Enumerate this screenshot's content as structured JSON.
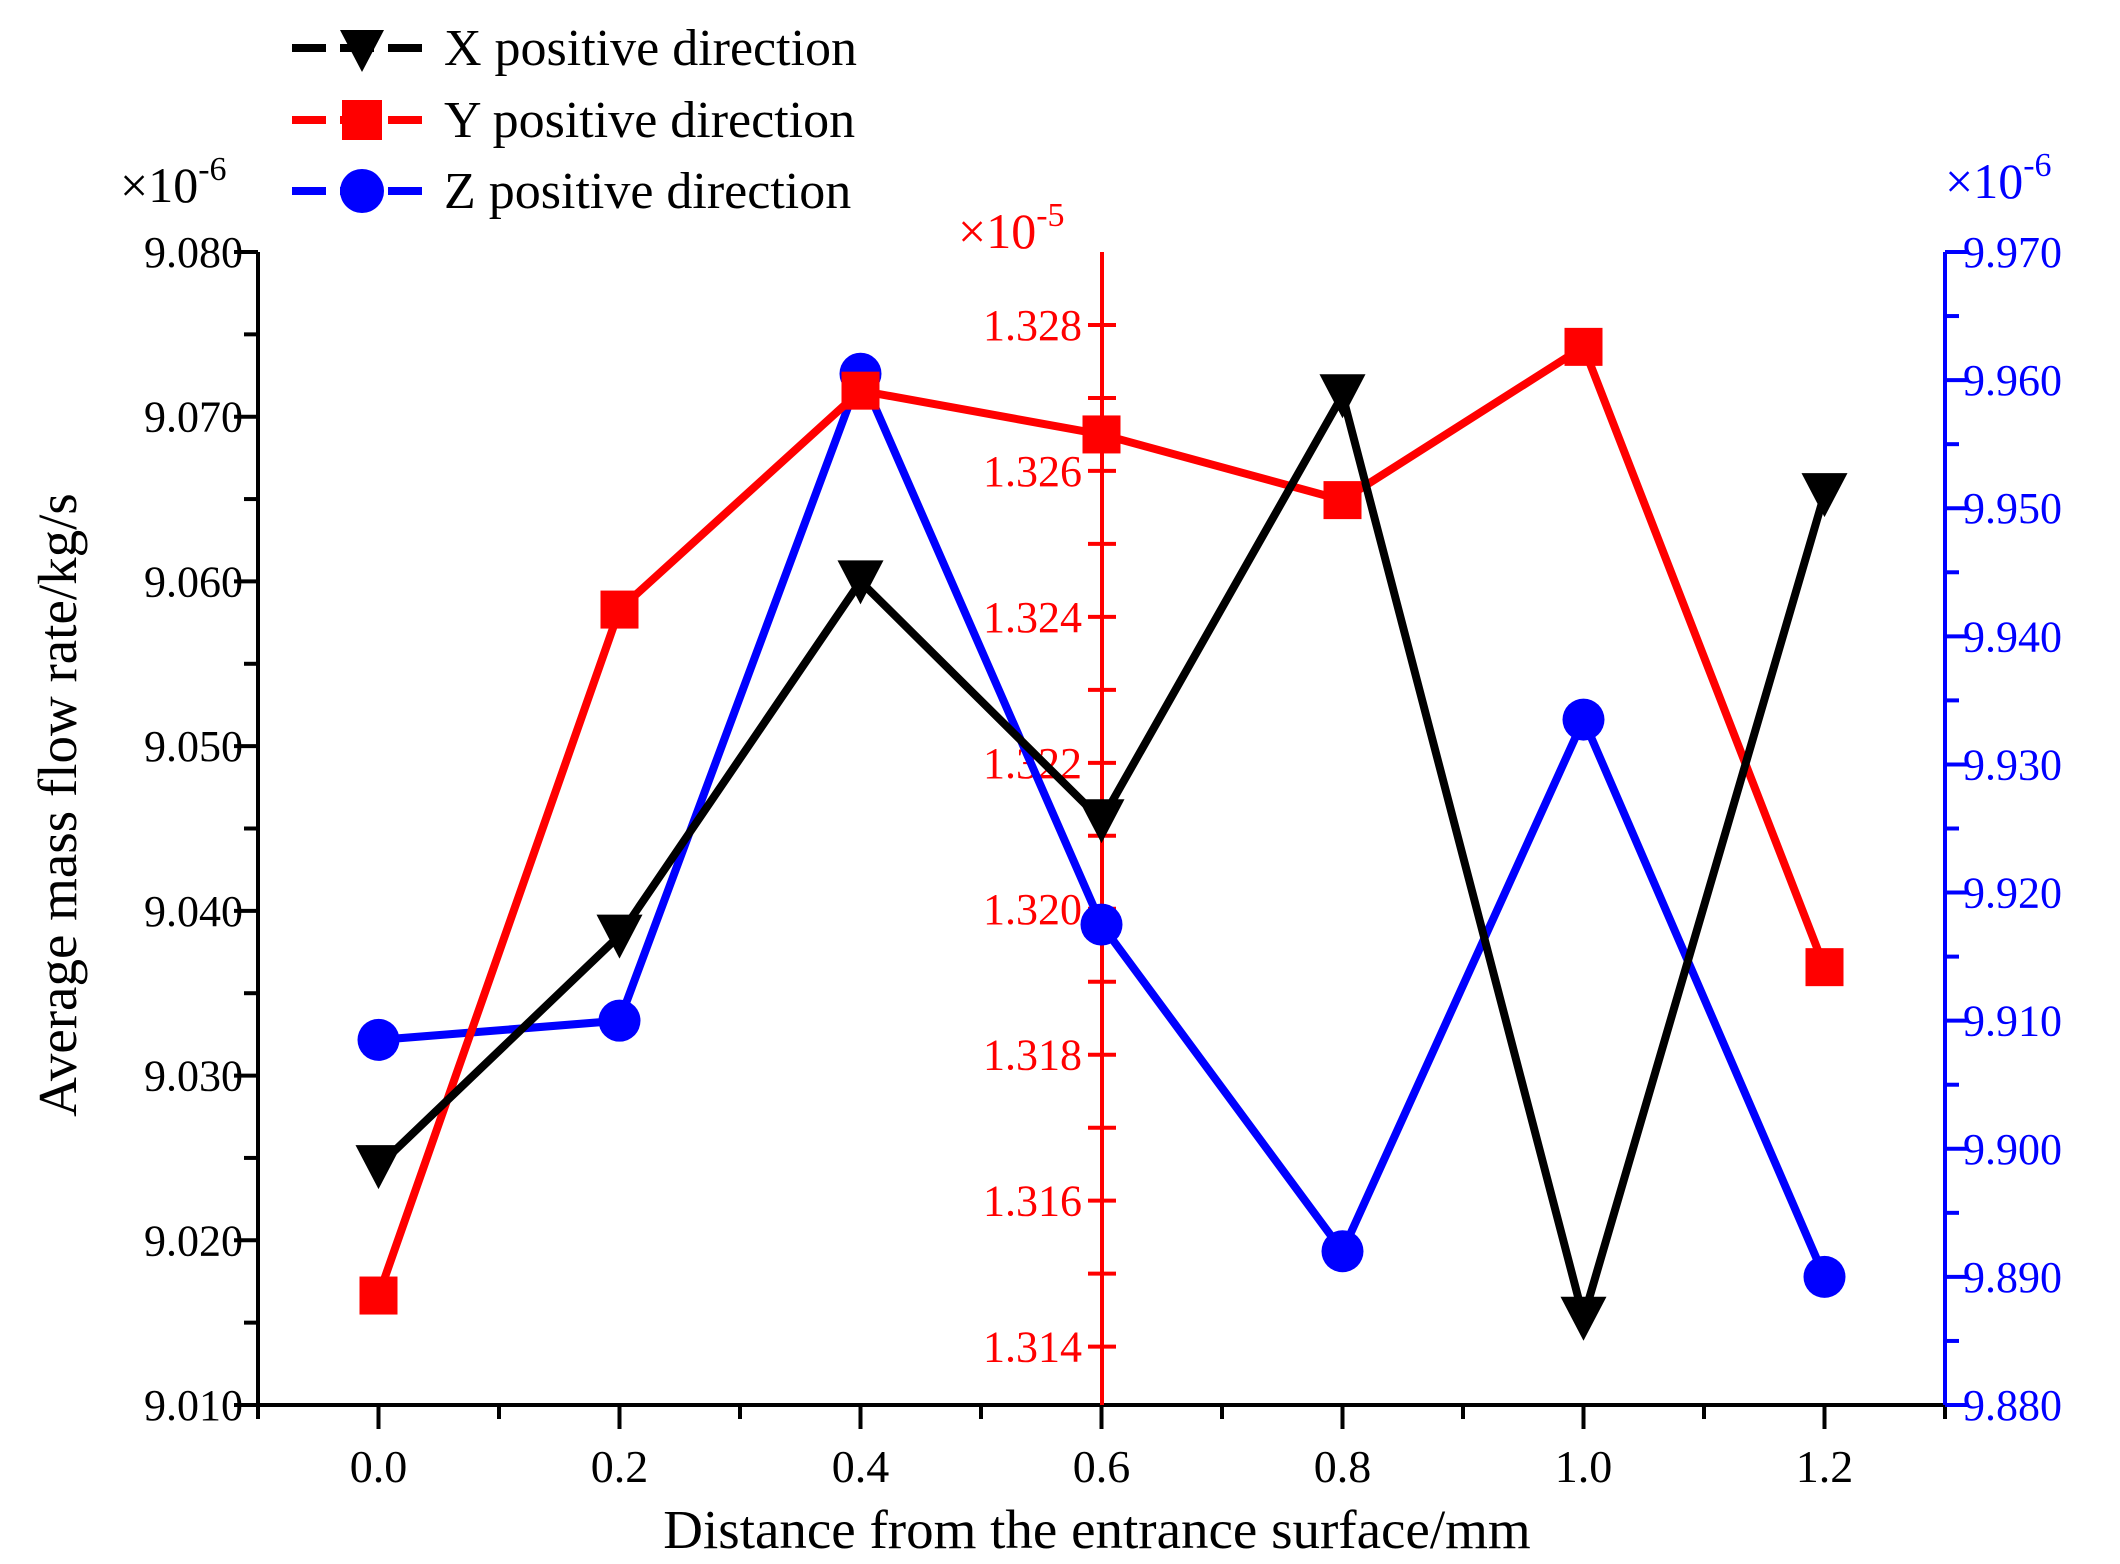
{
  "chart_data": {
    "type": "line",
    "xlabel": "Distance from the entrance surface/mm",
    "x": [
      0.0,
      0.2,
      0.4,
      0.6,
      0.8,
      1.0,
      1.2
    ],
    "x_ticks": [
      "0.0",
      "0.2",
      "0.4",
      "0.6",
      "0.8",
      "1.0",
      "1.2"
    ],
    "xlim": [
      -0.1,
      1.3
    ],
    "axes": {
      "left": {
        "label": "Average mass flow rate/kg/s",
        "multiplier": "×10",
        "exponent": "-6",
        "lim": [
          9.01,
          9.08
        ],
        "ticks": [
          "9.010",
          "9.020",
          "9.030",
          "9.040",
          "9.050",
          "9.060",
          "9.070",
          "9.080"
        ],
        "color": "#000000"
      },
      "middle": {
        "multiplier": "×10",
        "exponent": "-5",
        "lim": [
          1.3132,
          1.329
        ],
        "ticks": [
          "1.314",
          "1.316",
          "1.318",
          "1.320",
          "1.322",
          "1.324",
          "1.326",
          "1.328"
        ],
        "color": "#ff0000"
      },
      "right": {
        "multiplier": "×10",
        "exponent": "-6",
        "lim": [
          9.88,
          9.97
        ],
        "ticks": [
          "9.880",
          "9.890",
          "9.900",
          "9.910",
          "9.920",
          "9.930",
          "9.940",
          "9.950",
          "9.960",
          "9.970"
        ],
        "color": "#0000ff"
      }
    },
    "series": [
      {
        "name": "X positive direction",
        "axis": "left",
        "color": "#000000",
        "marker": "triangle-down",
        "values": [
          9.0245,
          9.0385,
          9.06,
          9.0455,
          9.0713,
          9.0153,
          9.0653
        ]
      },
      {
        "name": "Y positive direction",
        "axis": "middle",
        "color": "#ff0000",
        "marker": "square",
        "values": [
          1.3147,
          1.3241,
          1.3271,
          1.3265,
          1.3256,
          1.3277,
          1.3192
        ]
      },
      {
        "name": "Z positive direction",
        "axis": "right",
        "color": "#0000ff",
        "marker": "circle",
        "values": [
          9.9085,
          9.91,
          9.9605,
          9.9175,
          9.892,
          9.9335,
          9.89
        ]
      }
    ],
    "legend_position": "top-left"
  }
}
